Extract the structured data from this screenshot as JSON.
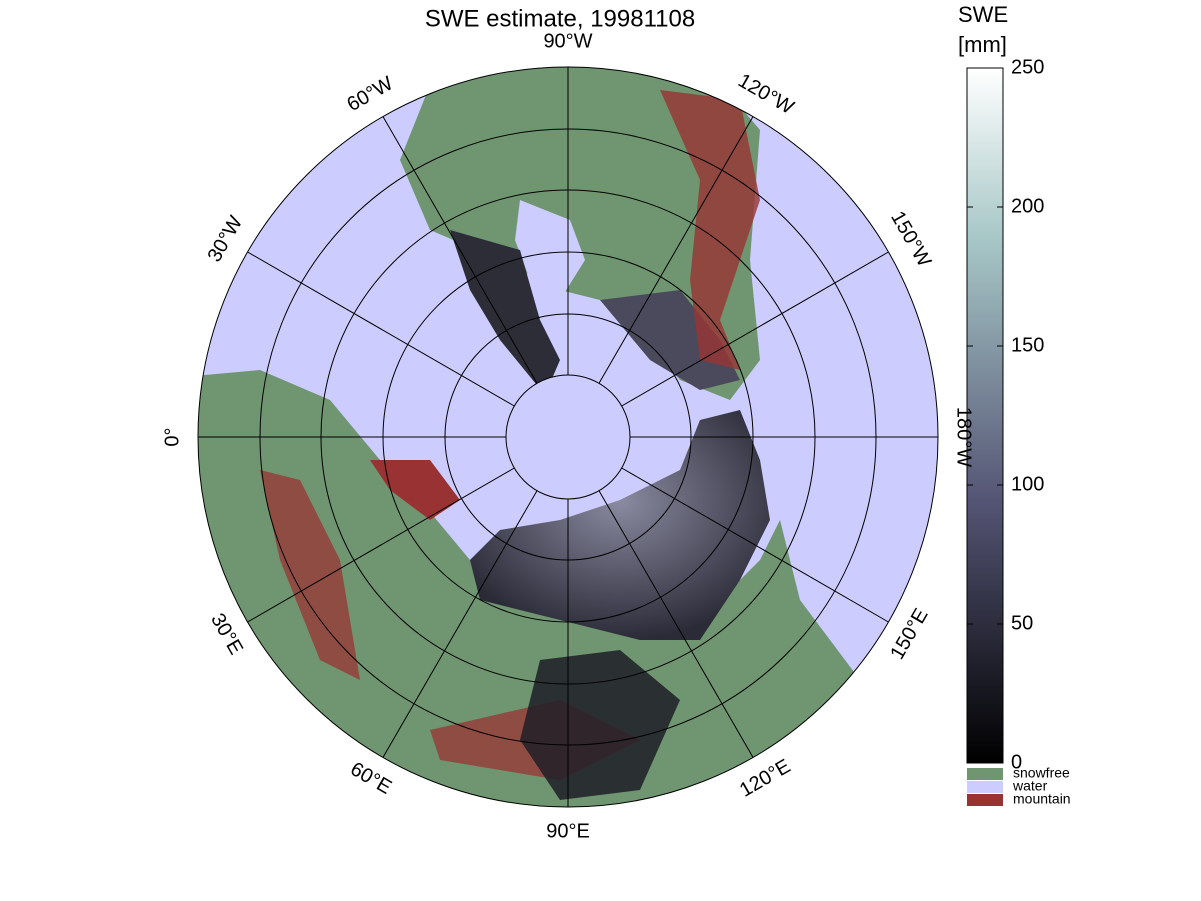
{
  "map": {
    "title": "SWE estimate, 19981108",
    "lon_ticks": [
      {
        "value": -90,
        "label": "90°W"
      },
      {
        "value": -120,
        "label": "120°W"
      },
      {
        "value": -150,
        "label": "150°W"
      },
      {
        "value": -180,
        "label": "180°W"
      },
      {
        "value": 150,
        "label": "150°E"
      },
      {
        "value": 120,
        "label": "120°E"
      },
      {
        "value": 90,
        "label": "90°E"
      },
      {
        "value": 60,
        "label": "60°E"
      },
      {
        "value": 30,
        "label": "30°E"
      },
      {
        "value": 0,
        "label": "0°"
      },
      {
        "value": -30,
        "label": "30°W"
      },
      {
        "value": -60,
        "label": "60°W"
      }
    ]
  },
  "colorbar": {
    "label": [
      "SWE",
      "[mm]"
    ],
    "lim": [
      0,
      250
    ],
    "ticks": [
      0,
      50,
      100,
      150,
      200,
      250
    ]
  },
  "legend": [
    {
      "name": "snowfree",
      "color": "#6f9670"
    },
    {
      "name": "water",
      "color": "#ccccff"
    },
    {
      "name": "mountain",
      "color": "#993333"
    }
  ]
}
